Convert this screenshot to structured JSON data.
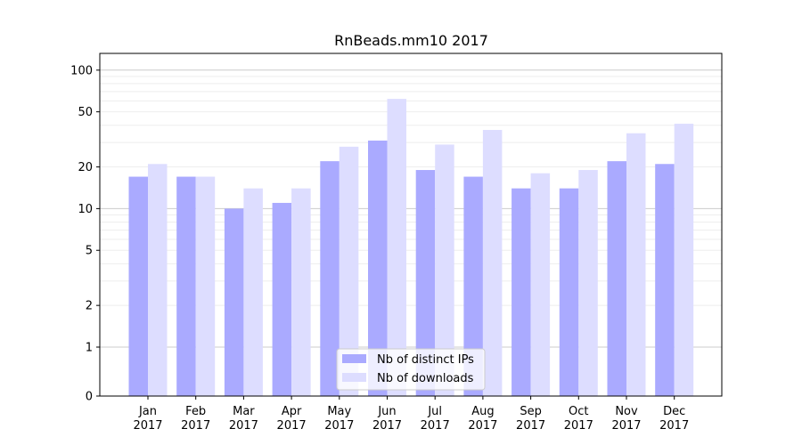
{
  "chart_data": {
    "type": "bar",
    "title": "RnBeads.mm10 2017",
    "xlabel": "",
    "ylabel": "",
    "y_scale": "symlog",
    "y_ticks": [
      0,
      1,
      2,
      5,
      10,
      20,
      50,
      100
    ],
    "y_tick_labels": [
      "0",
      "1",
      "2",
      "5",
      "10",
      "20",
      "50",
      "100"
    ],
    "ylim": [
      0,
      120
    ],
    "grid": true,
    "legend_position": "bottom-center",
    "categories": [
      {
        "month": "Jan",
        "year": "2017"
      },
      {
        "month": "Feb",
        "year": "2017"
      },
      {
        "month": "Mar",
        "year": "2017"
      },
      {
        "month": "Apr",
        "year": "2017"
      },
      {
        "month": "May",
        "year": "2017"
      },
      {
        "month": "Jun",
        "year": "2017"
      },
      {
        "month": "Jul",
        "year": "2017"
      },
      {
        "month": "Aug",
        "year": "2017"
      },
      {
        "month": "Sep",
        "year": "2017"
      },
      {
        "month": "Oct",
        "year": "2017"
      },
      {
        "month": "Nov",
        "year": "2017"
      },
      {
        "month": "Dec",
        "year": "2017"
      }
    ],
    "series": [
      {
        "name": "Nb of distinct IPs",
        "color": "#aaaaff",
        "values": [
          17,
          17,
          10,
          11,
          22,
          31,
          19,
          17,
          14,
          14,
          22,
          21
        ]
      },
      {
        "name": "Nb of downloads",
        "color": "#ddddff",
        "values": [
          21,
          17,
          14,
          14,
          28,
          62,
          29,
          37,
          18,
          19,
          35,
          41
        ]
      }
    ]
  }
}
